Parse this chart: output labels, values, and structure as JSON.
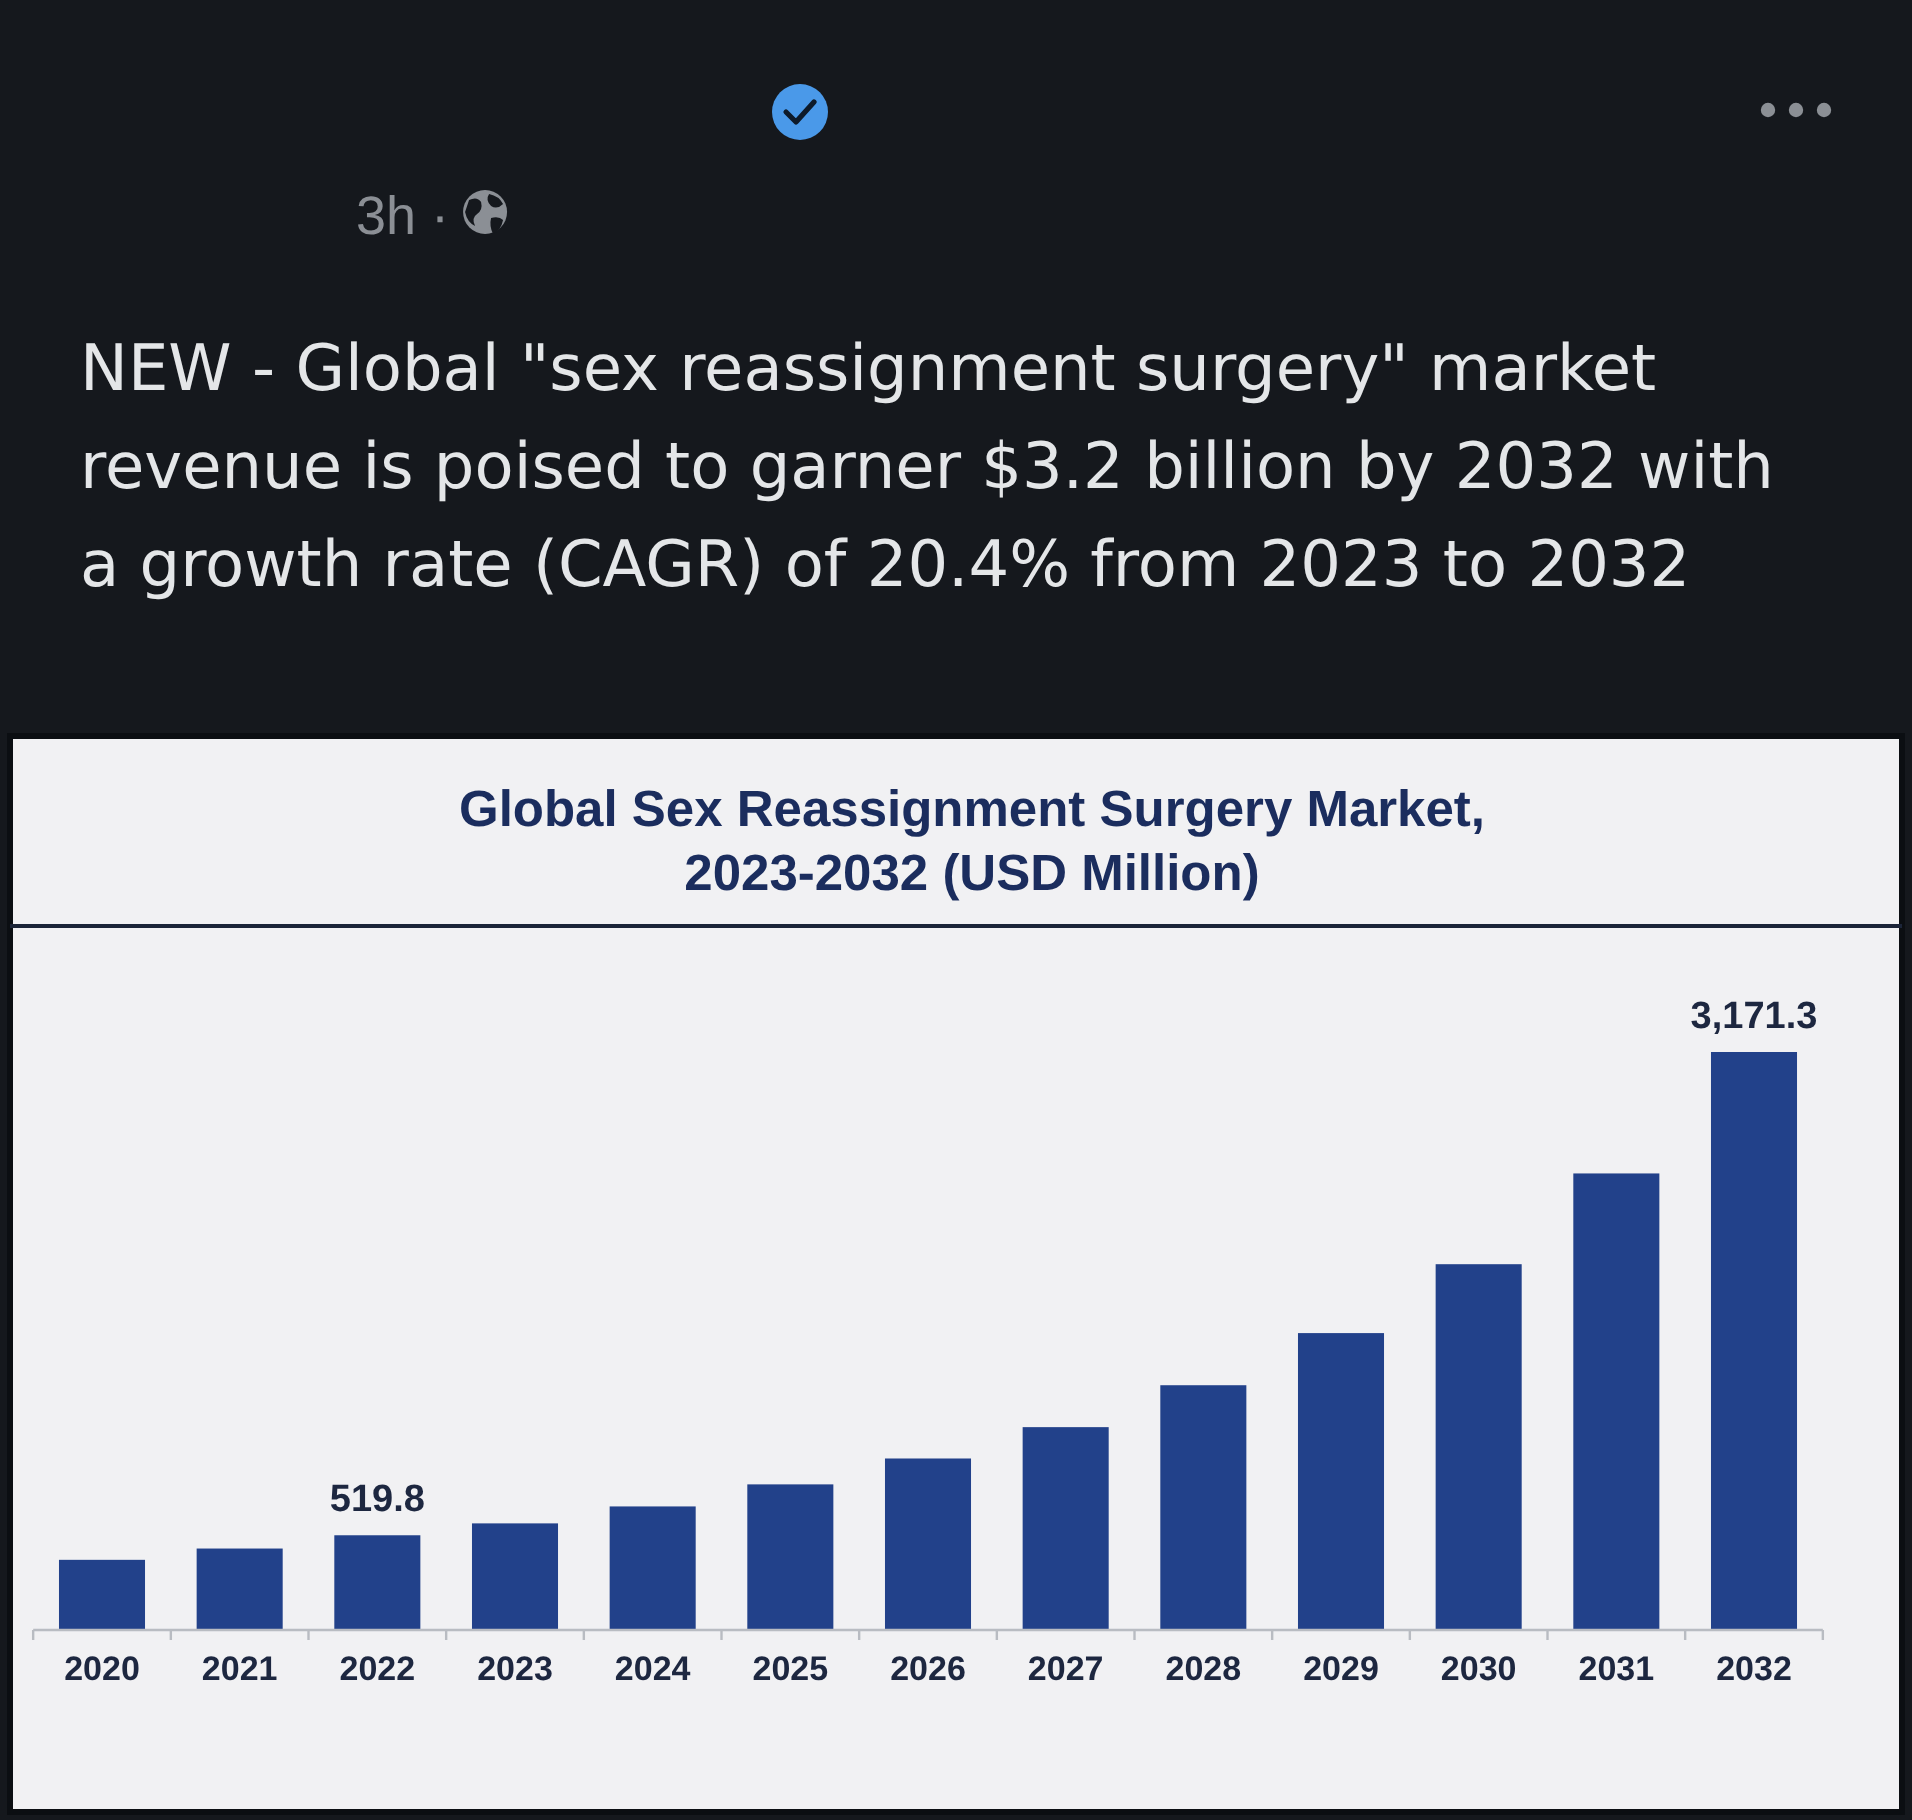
{
  "chart_data": {
    "type": "bar",
    "title": "Global Sex Reassignment Surgery Market, 2023-2032 (USD Million)",
    "annotations": [
      "3h ·",
      "NEW - Global \"sex reassignment surgery\" market revenue is poised to garner $3.2 billion by 2032 with a growth rate (CAGR) of 20.4% from 2023 to 2032"
    ],
    "categories": [
      "2020",
      "2021",
      "2022",
      "2023",
      "2024",
      "2025",
      "2026",
      "2027",
      "2028",
      "2029",
      "2030",
      "2031",
      "2032"
    ],
    "values": [
      385,
      447,
      519.8,
      585,
      678,
      799,
      941,
      1113,
      1343,
      1629,
      2007,
      2505,
      3171.3
    ],
    "value_labels": [
      null,
      null,
      "519.8",
      null,
      null,
      null,
      null,
      null,
      null,
      null,
      null,
      null,
      "3,171.3"
    ],
    "color": "#22418a"
  }
}
